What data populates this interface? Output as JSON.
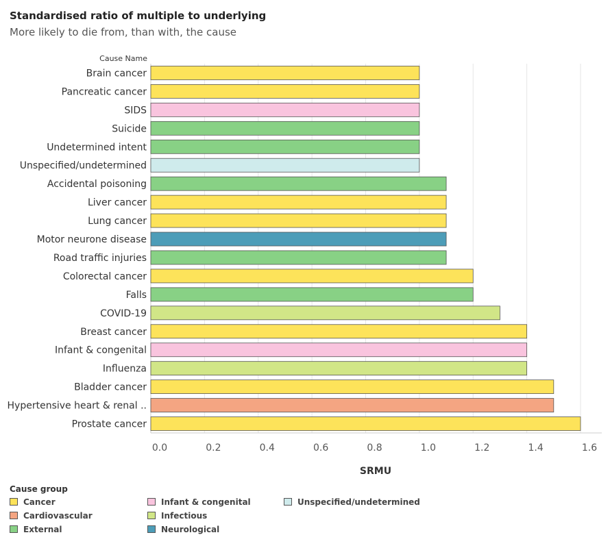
{
  "title": "Standardised ratio of multiple to underlying",
  "subtitle": "More likely to die from, than with, the cause",
  "colors": {
    "Cancer": "#FDE35A",
    "Cardiovascular": "#F4A582",
    "External": "#88D185",
    "Infant & congenital": "#F9C4DE",
    "Infectious": "#D1E687",
    "Neurological": "#4D9DB8",
    "Unspecified/undetermined": "#CFEBEC"
  },
  "chart_data": {
    "type": "bar",
    "orientation": "horizontal",
    "category_header": "Cause Name",
    "xlabel": "SRMU",
    "xlim": [
      0,
      1.6
    ],
    "xticks": [
      "0.0",
      "0.2",
      "0.4",
      "0.6",
      "0.8",
      "1.0",
      "1.2",
      "1.4",
      "1.6"
    ],
    "grid": true,
    "categories": [
      "Brain cancer",
      "Pancreatic cancer",
      "SIDS",
      "Suicide",
      "Undetermined intent",
      "Unspecified/undetermined",
      "Accidental poisoning",
      "Liver cancer",
      "Lung cancer",
      "Motor neurone disease",
      "Road traffic injuries",
      "Colorectal cancer",
      "Falls",
      "COVID-19",
      "Breast cancer",
      "Infant & congenital",
      "Influenza",
      "Bladder cancer",
      "Hypertensive heart & renal ..",
      "Prostate cancer"
    ],
    "values": [
      1.0,
      1.0,
      1.0,
      1.0,
      1.0,
      1.0,
      1.1,
      1.1,
      1.1,
      1.1,
      1.1,
      1.2,
      1.2,
      1.3,
      1.4,
      1.4,
      1.4,
      1.5,
      1.5,
      1.6
    ],
    "groups": [
      "Cancer",
      "Cancer",
      "Infant & congenital",
      "External",
      "External",
      "Unspecified/undetermined",
      "External",
      "Cancer",
      "Cancer",
      "Neurological",
      "External",
      "Cancer",
      "External",
      "Infectious",
      "Cancer",
      "Infant & congenital",
      "Infectious",
      "Cancer",
      "Cardiovascular",
      "Cancer"
    ]
  },
  "legend": {
    "title": "Cause group",
    "items": [
      {
        "label": "Cancer",
        "color": "#FDE35A"
      },
      {
        "label": "Cardiovascular",
        "color": "#F4A582"
      },
      {
        "label": "External",
        "color": "#88D185"
      },
      {
        "label": "Infant & congenital",
        "color": "#F9C4DE"
      },
      {
        "label": "Infectious",
        "color": "#D1E687"
      },
      {
        "label": "Neurological",
        "color": "#4D9DB8"
      },
      {
        "label": "Unspecified/undetermined",
        "color": "#CFEBEC"
      }
    ]
  }
}
